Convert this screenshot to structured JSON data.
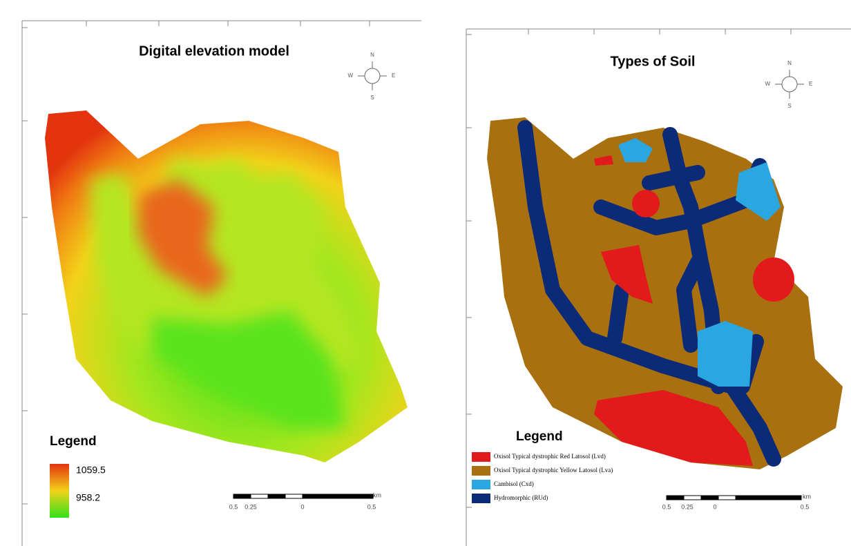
{
  "panels": [
    {
      "title": "Digital elevation model",
      "compass": {
        "n": "N",
        "s": "S",
        "e": "E",
        "w": "W"
      },
      "legend": {
        "title": "Legend",
        "items": [
          {
            "label": "1059.5"
          },
          {
            "label": "958.2"
          }
        ]
      },
      "scale": {
        "labels": [
          "0.5",
          "0.25",
          "0",
          "0.5"
        ],
        "unit": "km"
      }
    },
    {
      "title": "Types of Soil",
      "compass": {
        "n": "N",
        "s": "S",
        "e": "E",
        "w": "W"
      },
      "legend": {
        "title": "Legend",
        "items": [
          {
            "label": "Oxisol Typical dystrophic Red Latosol (Lvd)",
            "color": "#e31a1c"
          },
          {
            "label": "Oxisol Typical dystrophic Yellow Latosol (Lva)",
            "color": "#a8700f"
          },
          {
            "label": "Cambisol (Cxd)",
            "color": "#2aa7e0"
          },
          {
            "label": "Hydromorphic (RUd)",
            "color": "#0b2a78"
          }
        ]
      },
      "scale": {
        "labels": [
          "0.5",
          "0.25",
          "0",
          "0.5"
        ],
        "unit": "km"
      }
    }
  ]
}
